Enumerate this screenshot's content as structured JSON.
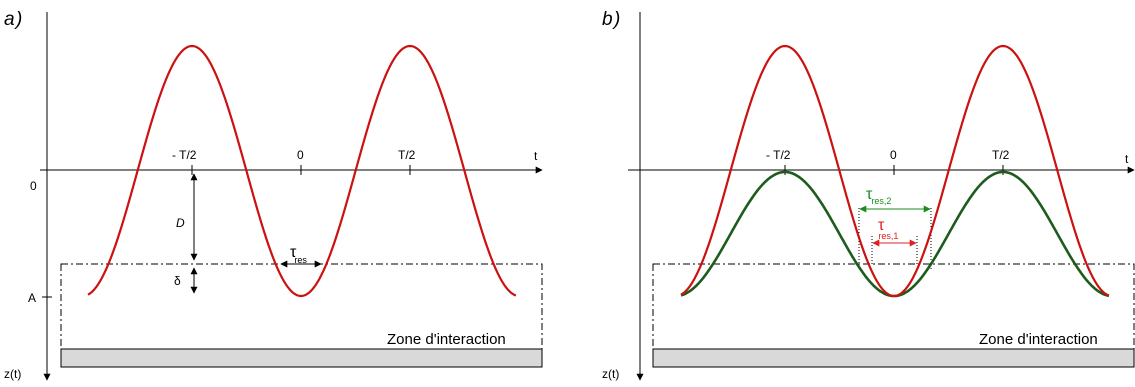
{
  "panels": [
    {
      "id": "a",
      "label": "a",
      "t_axis_label": "t",
      "z_axis_label": "z(t)",
      "zero_label": "0",
      "a_label": "A",
      "tick_labels": [
        "- T/2",
        "0",
        "T/2"
      ],
      "d_label": "D",
      "delta_label": "δ",
      "tau": {
        "symbol": "τ",
        "sub": "res"
      },
      "zone_label": "Zone d'interaction"
    },
    {
      "id": "b",
      "label": "b",
      "t_axis_label": "t",
      "z_axis_label": "z(t)",
      "tick_labels": [
        "- T/2",
        "0",
        "T/2"
      ],
      "tau2": {
        "symbol": "τ",
        "sub": "res,2"
      },
      "tau1": {
        "symbol": "τ",
        "sub": "res,1"
      },
      "zone_label": "Zone d'interaction"
    }
  ],
  "colors": {
    "large_oscillation": "#cc1111",
    "small_oscillation": "#1e5c1e",
    "tau2_arrow": "#1e8a1e",
    "tau1_arrow": "#e02020",
    "surface": "#d9d9d9"
  }
}
